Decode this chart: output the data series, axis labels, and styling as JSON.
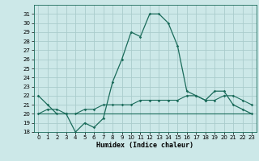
{
  "xlabel": "Humidex (Indice chaleur)",
  "background_color": "#cce8e8",
  "grid_color": "#aacccc",
  "line_color": "#1a6b5a",
  "x_values": [
    0,
    1,
    2,
    3,
    4,
    5,
    6,
    7,
    8,
    9,
    10,
    11,
    12,
    13,
    14,
    15,
    16,
    17,
    18,
    19,
    20,
    21,
    22,
    23
  ],
  "series1": [
    22,
    21,
    20,
    20,
    18,
    19,
    18.5,
    19.5,
    23.5,
    26,
    29,
    28.5,
    31,
    31,
    30,
    27.5,
    22.5,
    22,
    21.5,
    22.5,
    22.5,
    21,
    20.5,
    20
  ],
  "series2": [
    20,
    20,
    20,
    20,
    20,
    20,
    20,
    20,
    20,
    20,
    20,
    20,
    20,
    20,
    20,
    20,
    20,
    20,
    20,
    20,
    20,
    20,
    20,
    20
  ],
  "series3": [
    20,
    20.5,
    20.5,
    20,
    20,
    20.5,
    20.5,
    21,
    21,
    21,
    21,
    21.5,
    21.5,
    21.5,
    21.5,
    21.5,
    22,
    22,
    21.5,
    21.5,
    22,
    22,
    21.5,
    21
  ],
  "ylim": [
    18,
    32
  ],
  "yticks": [
    18,
    19,
    20,
    21,
    22,
    23,
    24,
    25,
    26,
    27,
    28,
    29,
    30,
    31
  ],
  "xlim": [
    -0.5,
    23.5
  ],
  "xticks": [
    0,
    1,
    2,
    3,
    4,
    5,
    6,
    7,
    8,
    9,
    10,
    11,
    12,
    13,
    14,
    15,
    16,
    17,
    18,
    19,
    20,
    21,
    22,
    23
  ],
  "xlabel_fontsize": 6,
  "tick_fontsize": 5
}
